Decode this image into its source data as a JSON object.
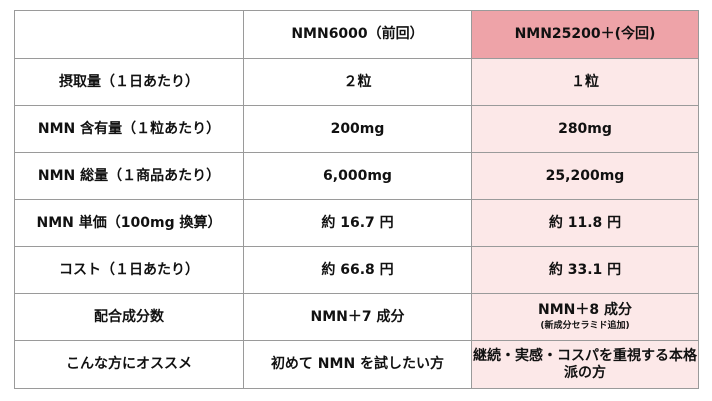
{
  "colors": {
    "highlight_header": "#eea3a8",
    "highlight_cell": "#fce8e8",
    "border": "#9a9a9a"
  },
  "header": {
    "corner": "",
    "prev": "NMN6000（前回）",
    "now": "NMN25200＋(今回)"
  },
  "rows": [
    {
      "label": "摂取量（１日あたり）",
      "prev": "２粒",
      "now": "１粒"
    },
    {
      "label": "NMN 含有量（１粒あたり）",
      "prev": "200mg",
      "now": "280mg"
    },
    {
      "label": "NMN 総量（１商品あたり）",
      "prev": "6,000mg",
      "now": "25,200mg"
    },
    {
      "label": "NMN 単価（100mg 換算）",
      "prev": "約 16.7 円",
      "now": "約 11.8 円"
    },
    {
      "label": "コスト（１日あたり）",
      "prev": "約 66.8 円",
      "now": "約 33.1 円"
    },
    {
      "label": "配合成分数",
      "prev": "NMN＋7 成分",
      "now": "NMN＋8 成分",
      "now_sub": "(新成分セラミド追加)"
    },
    {
      "label": "こんな方にオススメ",
      "prev": "初めて NMN を試したい方",
      "now": "継続・実感・コスパを重視する本格派の方"
    }
  ]
}
